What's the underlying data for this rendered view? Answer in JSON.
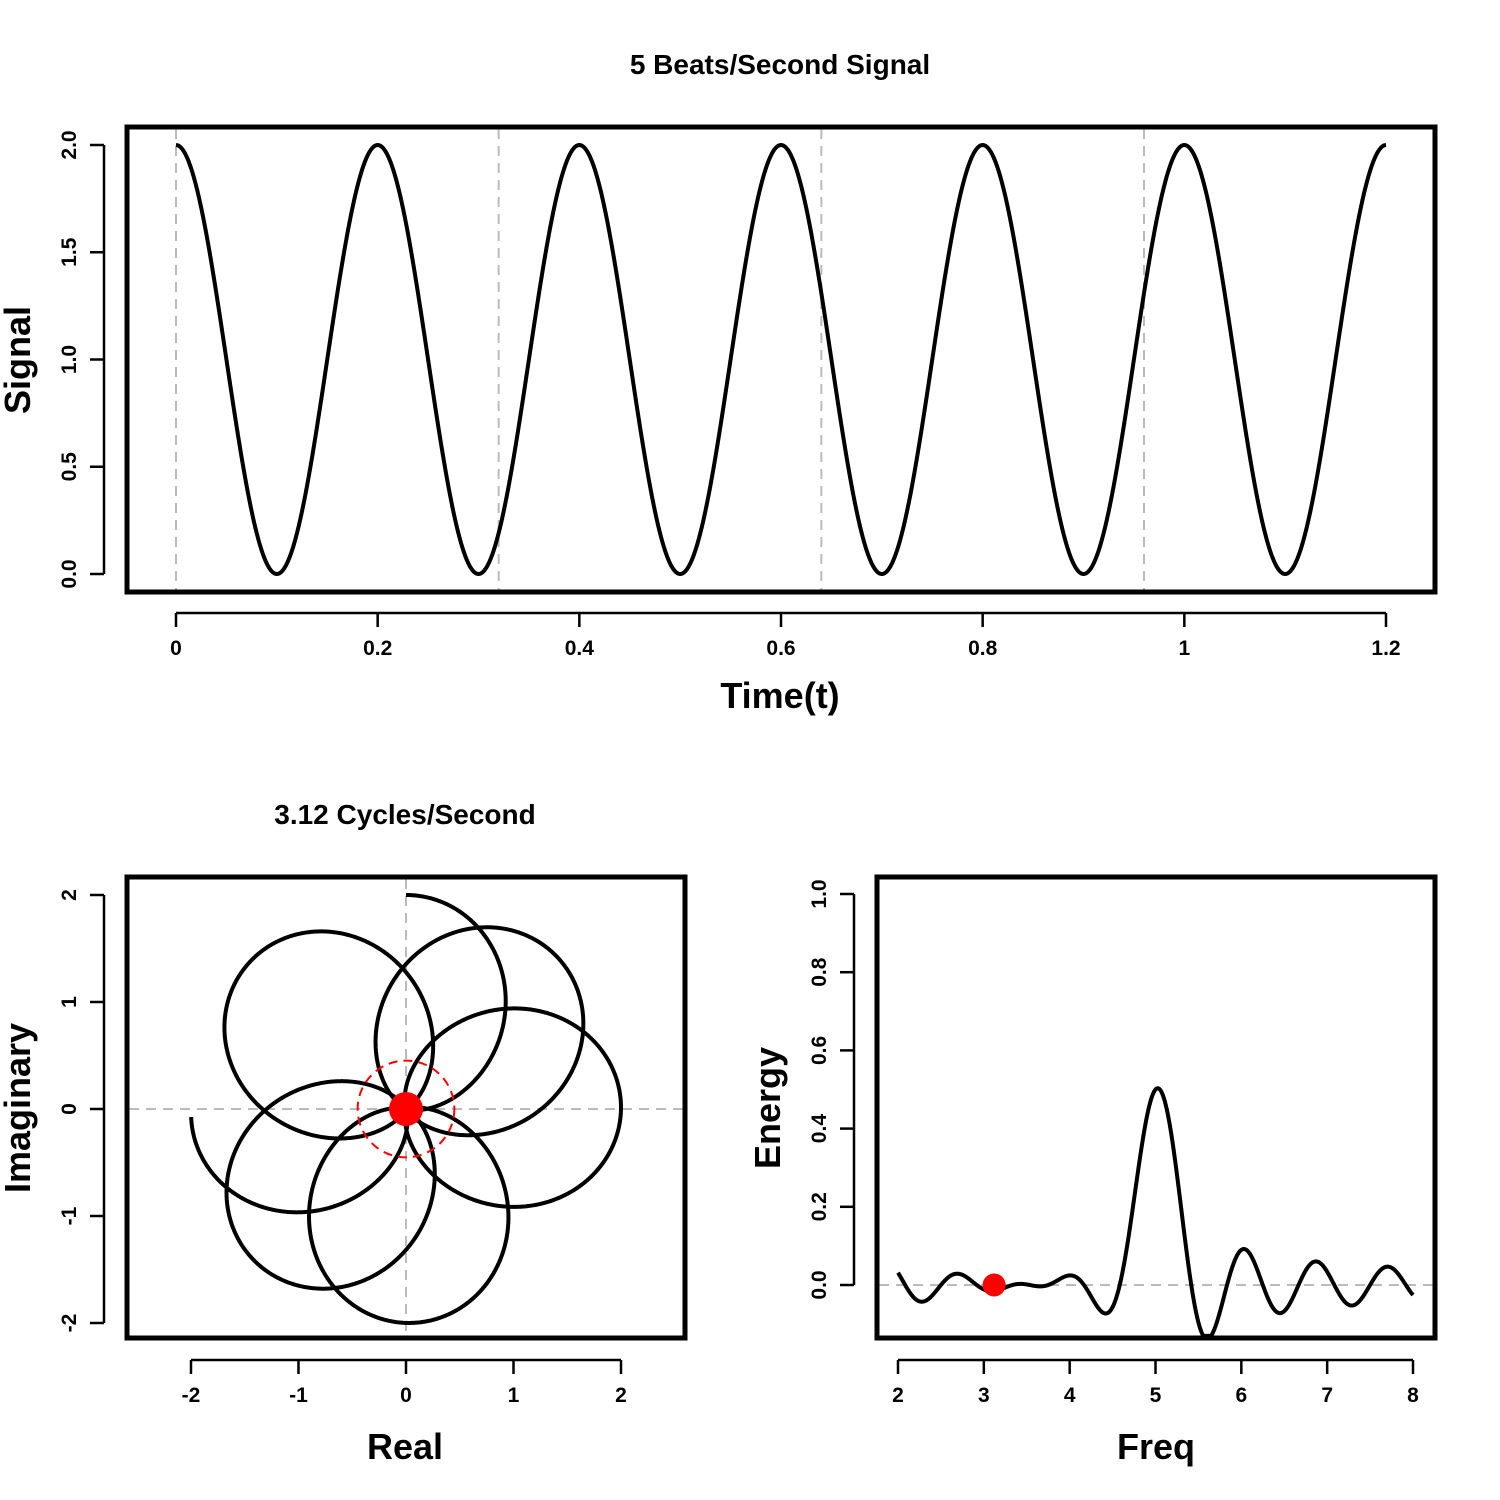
{
  "chart_data": [
    {
      "id": "signal",
      "type": "line",
      "title": "5 Beats/Second Signal",
      "xlabel": "Time(t)",
      "ylabel": "Signal",
      "function": "1 + cos(2*pi*5*t)",
      "beats_per_second": 5,
      "xlim": [
        0,
        1.2
      ],
      "ylim": [
        0,
        2
      ],
      "x_ticks": [
        0,
        0.2,
        0.4,
        0.6,
        0.8,
        1,
        1.2
      ],
      "x_tick_labels": [
        "0",
        "0.2",
        "0.4",
        "0.6",
        "0.8",
        "1",
        "1.2"
      ],
      "y_ticks": [
        0,
        0.5,
        1,
        1.5,
        2
      ],
      "y_tick_labels": [
        "0.0",
        "0.5",
        "1.0",
        "1.5",
        "2.0"
      ],
      "vlines": [
        0,
        0.32,
        0.64,
        0.96
      ],
      "grid": false
    },
    {
      "id": "winding",
      "type": "line",
      "title": "3.12 Cycles/Second",
      "xlabel": "Real",
      "ylabel": "Imaginary",
      "winding_frequency": 3.12,
      "t_range": [
        0,
        1.2
      ],
      "xlim": [
        -2,
        2
      ],
      "ylim": [
        -2,
        2
      ],
      "x_ticks": [
        -2,
        -1,
        0,
        1,
        2
      ],
      "x_tick_labels": [
        "-2",
        "-1",
        "0",
        "1",
        "2"
      ],
      "y_ticks": [
        -2,
        -1,
        0,
        1,
        2
      ],
      "y_tick_labels": [
        "-2",
        "-1",
        "0",
        "1",
        "2"
      ],
      "center_of_mass": [
        0,
        0
      ],
      "center_circle_radius": 0.45,
      "marker_color": "#ff0000"
    },
    {
      "id": "energy",
      "type": "line",
      "title": "",
      "xlabel": "Freq",
      "ylabel": "Energy",
      "xlim": [
        2,
        8
      ],
      "ylim": [
        -0.13,
        1.02
      ],
      "x_ticks": [
        2,
        3,
        4,
        5,
        6,
        7,
        8
      ],
      "x_tick_labels": [
        "2",
        "3",
        "4",
        "5",
        "6",
        "7",
        "8"
      ],
      "y_ticks": [
        0,
        0.2,
        0.4,
        0.6,
        0.8,
        1
      ],
      "y_tick_labels": [
        "0.0",
        "0.2",
        "0.4",
        "0.6",
        "0.8",
        "1.0"
      ],
      "hline": 0,
      "peak": {
        "x": 5,
        "y": 0.5
      },
      "current_point": {
        "x": 3.12,
        "y": 0
      },
      "marker_color": "#ff0000"
    }
  ]
}
